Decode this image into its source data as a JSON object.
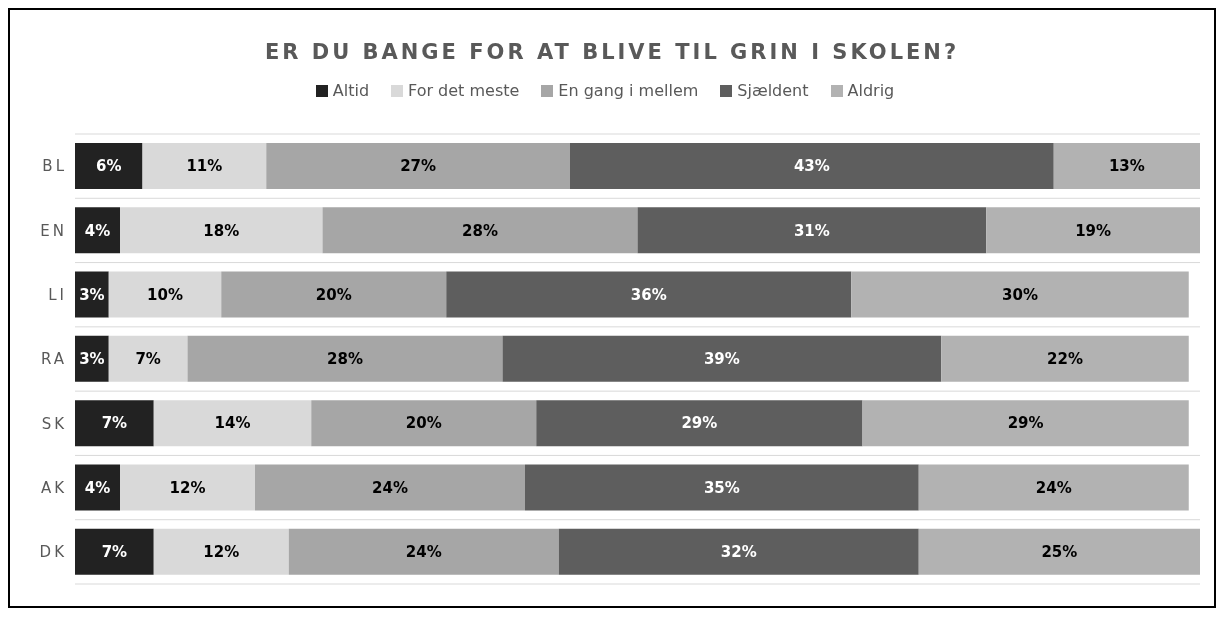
{
  "chart_data": {
    "type": "bar",
    "orientation": "horizontal",
    "stacked": true,
    "title": "ER DU BANGE FOR AT BLIVE TIL GRIN I SKOLEN?",
    "categories": [
      "BL",
      "EN",
      "LI",
      "RA",
      "SK",
      "AK",
      "DK"
    ],
    "series": [
      {
        "name": "Altid",
        "color": "#222222",
        "values": [
          6,
          4,
          3,
          3,
          7,
          4,
          7
        ],
        "value_labels": [
          "6%",
          "4%",
          "3%",
          "3%",
          "7%",
          "4%",
          "7%"
        ]
      },
      {
        "name": "For det meste",
        "color": "#d9d9d9",
        "values": [
          11,
          18,
          10,
          7,
          14,
          12,
          12
        ],
        "value_labels": [
          "11%",
          "18%",
          "10%",
          "7%",
          "14%",
          "12%",
          "12%"
        ]
      },
      {
        "name": "En gang i mellem",
        "color": "#a6a6a6",
        "values": [
          27,
          28,
          20,
          28,
          20,
          24,
          24
        ],
        "value_labels": [
          "27%",
          "28%",
          "20%",
          "28%",
          "20%",
          "24%",
          "24%"
        ]
      },
      {
        "name": "Sjældent",
        "color": "#5e5e5e",
        "values": [
          43,
          31,
          36,
          39,
          29,
          35,
          32
        ],
        "value_labels": [
          "43%",
          "31%",
          "36%",
          "39%",
          "29%",
          "35%",
          "32%"
        ]
      },
      {
        "name": "Aldrig",
        "color": "#b2b2b2",
        "values": [
          13,
          19,
          30,
          22,
          29,
          24,
          25
        ],
        "value_labels": [
          "13%",
          "19%",
          "30%",
          "22%",
          "29%",
          "24%",
          "25%"
        ]
      }
    ],
    "tick_labels": "y",
    "grid": "y",
    "legend": "top"
  }
}
